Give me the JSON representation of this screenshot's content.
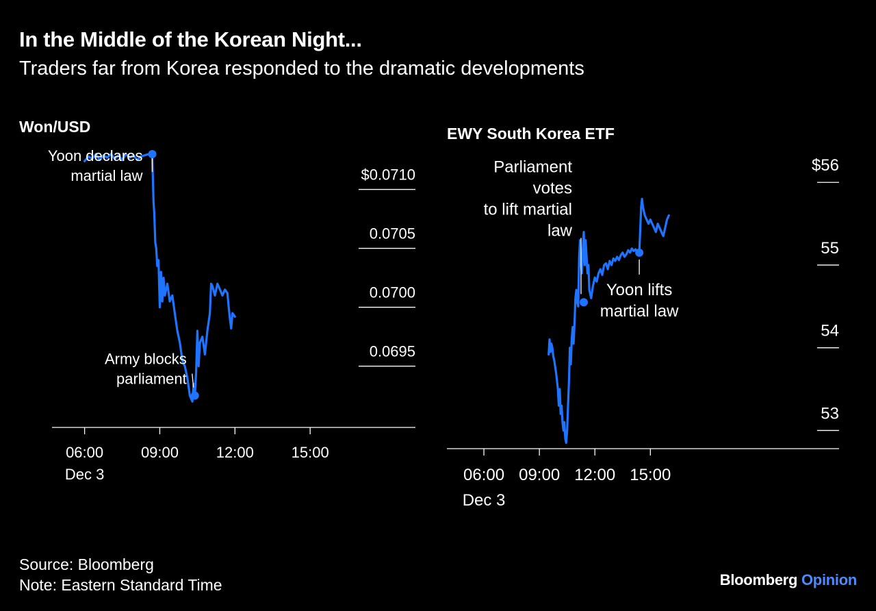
{
  "header": {
    "title": "In the Middle of the Korean Night...",
    "subtitle": "Traders far from Korea responded to the dramatic developments"
  },
  "footer": {
    "source": "Source: Bloomberg",
    "note": "Note: Eastern Standard Time"
  },
  "brand": {
    "name": "Bloomberg",
    "suffix": "Opinion"
  },
  "colors": {
    "background": "#000000",
    "line": "#1e74ff",
    "text": "#ffffff"
  },
  "chart_data": [
    {
      "type": "line",
      "title": "Won/USD",
      "xlabel": "",
      "ylabel": "",
      "x_unit": "hours EST, Dec 3",
      "xlim": [
        4.7,
        19.2
      ],
      "ylim": [
        0.06898,
        0.07148
      ],
      "x_ticks": [
        {
          "value": 6,
          "label": "06:00"
        },
        {
          "value": 9,
          "label": "09:00"
        },
        {
          "value": 12,
          "label": "12:00"
        },
        {
          "value": 15,
          "label": "15:00"
        }
      ],
      "x_sublabel": "Dec 3",
      "y_ticks": [
        {
          "value": 0.071,
          "label": "$0.0710"
        },
        {
          "value": 0.0705,
          "label": "0.0705"
        },
        {
          "value": 0.07,
          "label": "0.0700"
        },
        {
          "value": 0.0695,
          "label": "0.0695"
        }
      ],
      "series": [
        {
          "name": "Won/USD",
          "x": [
            6.0,
            6.15,
            6.3,
            6.45,
            6.6,
            6.75,
            6.9,
            7.05,
            7.2,
            7.35,
            7.5,
            7.65,
            7.8,
            7.95,
            8.1,
            8.25,
            8.4,
            8.55,
            8.7,
            8.75,
            8.78,
            8.82,
            8.86,
            8.9,
            8.95,
            9.0,
            9.05,
            9.1,
            9.15,
            9.2,
            9.3,
            9.4,
            9.5,
            9.6,
            9.7,
            9.8,
            9.9,
            10.0,
            10.1,
            10.2,
            10.3,
            10.35,
            10.4,
            10.45,
            10.5,
            10.55,
            10.6,
            10.7,
            10.8,
            10.9,
            11.0,
            11.05,
            11.1,
            11.2,
            11.3,
            11.4,
            11.5,
            11.6,
            11.7,
            11.75,
            11.8,
            11.85,
            11.9,
            12.0
          ],
          "y": [
            0.07124,
            0.07128,
            0.07126,
            0.0713,
            0.07125,
            0.07129,
            0.07127,
            0.0713,
            0.07126,
            0.07129,
            0.07125,
            0.0713,
            0.07127,
            0.07129,
            0.07125,
            0.07128,
            0.07129,
            0.0713,
            0.0713,
            0.0709,
            0.0708,
            0.07055,
            0.0705,
            0.07035,
            0.0704,
            0.07,
            0.0703,
            0.07005,
            0.07025,
            0.0701,
            0.0702,
            0.07005,
            0.0701,
            0.06995,
            0.0698,
            0.0697,
            0.06955,
            0.0695,
            0.0694,
            0.06925,
            0.0692,
            0.06935,
            0.06925,
            0.06945,
            0.0698,
            0.0695,
            0.0697,
            0.06975,
            0.0696,
            0.0698,
            0.06995,
            0.0702,
            0.07018,
            0.0701,
            0.0702,
            0.07015,
            0.0701,
            0.07015,
            0.07012,
            0.07,
            0.0699,
            0.06982,
            0.06995,
            0.06992
          ]
        }
      ],
      "markers": [
        {
          "x": 8.7,
          "y": 0.0713
        },
        {
          "x": 10.4,
          "y": 0.06925
        }
      ],
      "annotations": [
        {
          "lines": [
            "Yoon declares",
            "martial law"
          ],
          "x": 8.7,
          "y": 0.0713
        },
        {
          "lines": [
            "Army blocks",
            "parliament"
          ],
          "x": 10.4,
          "y": 0.06925
        }
      ]
    },
    {
      "type": "line",
      "title": "EWY South Korea ETF",
      "xlabel": "",
      "ylabel": "",
      "x_unit": "hours EST, Dec 3",
      "xlim": [
        4.0,
        25.2
      ],
      "ylim": [
        52.78,
        56.3
      ],
      "x_ticks": [
        {
          "value": 6,
          "label": "06:00"
        },
        {
          "value": 9,
          "label": "09:00"
        },
        {
          "value": 12,
          "label": "12:00"
        },
        {
          "value": 15,
          "label": "15:00"
        }
      ],
      "x_sublabel": "Dec 3",
      "y_ticks": [
        {
          "value": 56,
          "label": "$56"
        },
        {
          "value": 55,
          "label": "55"
        },
        {
          "value": 54,
          "label": "54"
        },
        {
          "value": 53,
          "label": "53"
        }
      ],
      "series": [
        {
          "name": "EWY",
          "x": [
            9.5,
            9.55,
            9.6,
            9.65,
            9.7,
            9.75,
            9.8,
            9.9,
            10.0,
            10.05,
            10.1,
            10.15,
            10.2,
            10.25,
            10.3,
            10.35,
            10.4,
            10.45,
            10.5,
            10.55,
            10.6,
            10.65,
            10.7,
            10.75,
            10.8,
            10.85,
            10.9,
            10.95,
            11.0,
            11.05,
            11.1,
            11.15,
            11.2,
            11.25,
            11.3,
            11.35,
            11.4,
            11.45,
            11.5,
            11.55,
            11.6,
            11.65,
            11.7,
            11.8,
            11.9,
            12.0,
            12.1,
            12.2,
            12.3,
            12.4,
            12.5,
            12.6,
            12.7,
            12.8,
            12.9,
            13.0,
            13.1,
            13.2,
            13.3,
            13.4,
            13.5,
            13.6,
            13.7,
            13.8,
            13.9,
            14.0,
            14.1,
            14.2,
            14.3,
            14.4,
            14.45,
            14.5,
            14.55,
            14.6,
            14.7,
            14.8,
            14.9,
            15.0,
            15.1,
            15.2,
            15.3,
            15.4,
            15.5,
            15.6,
            15.7,
            15.8,
            15.9,
            16.0
          ],
          "y": [
            53.92,
            54.1,
            53.95,
            54.05,
            54.0,
            53.9,
            53.85,
            53.7,
            53.5,
            53.3,
            53.5,
            53.2,
            53.3,
            53.1,
            53.0,
            53.1,
            52.9,
            52.85,
            53.0,
            53.3,
            53.6,
            54.0,
            53.8,
            54.1,
            54.25,
            54.05,
            54.3,
            54.6,
            54.7,
            54.55,
            54.5,
            55.1,
            55.3,
            55.0,
            54.9,
            55.2,
            55.4,
            55.0,
            55.3,
            55.1,
            54.9,
            55.0,
            54.7,
            54.6,
            54.75,
            54.85,
            54.8,
            54.9,
            54.95,
            54.88,
            55.0,
            55.02,
            54.95,
            55.05,
            55.0,
            55.08,
            55.05,
            55.1,
            55.06,
            55.12,
            55.15,
            55.1,
            55.13,
            55.18,
            55.15,
            55.2,
            55.17,
            55.19,
            55.15,
            55.16,
            55.4,
            55.7,
            55.8,
            55.7,
            55.6,
            55.55,
            55.5,
            55.55,
            55.5,
            55.45,
            55.4,
            55.5,
            55.45,
            55.4,
            55.35,
            55.45,
            55.55,
            55.6
          ]
        }
      ],
      "markers": [
        {
          "x": 11.4,
          "y": 54.55
        },
        {
          "x": 14.4,
          "y": 55.15
        }
      ],
      "annotations": [
        {
          "lines": [
            "Parliament",
            "votes",
            "to lift martial",
            "law"
          ],
          "x": 11.4,
          "y": 54.55
        },
        {
          "lines": [
            "Yoon lifts",
            "martial law"
          ],
          "x": 14.4,
          "y": 55.15
        }
      ]
    }
  ]
}
